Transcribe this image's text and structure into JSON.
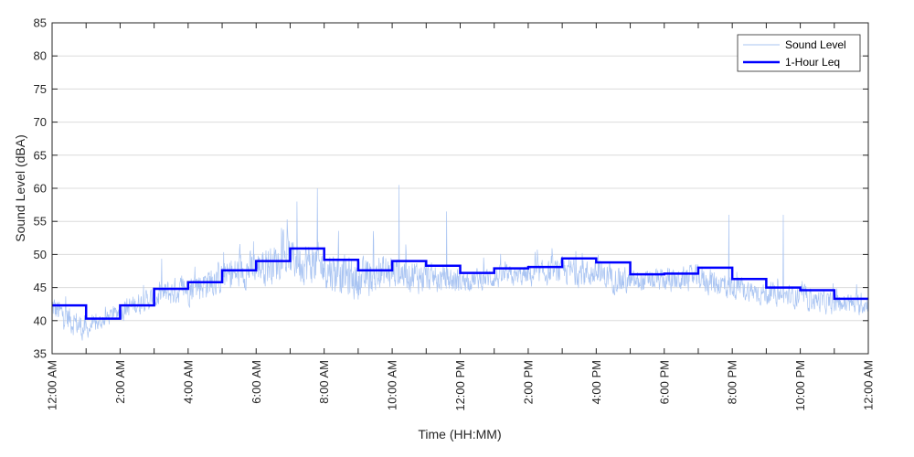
{
  "chart_data": {
    "type": "line",
    "xlabel": "Time (HH:MM)",
    "ylabel": "Sound Level (dBA)",
    "xlim": [
      0,
      24
    ],
    "ylim": [
      35,
      85
    ],
    "y_ticks": [
      35,
      40,
      45,
      50,
      55,
      60,
      65,
      70,
      75,
      80,
      85
    ],
    "x_ticks": [
      0,
      2,
      4,
      6,
      8,
      10,
      12,
      14,
      16,
      18,
      20,
      22,
      24
    ],
    "x_tick_labels": [
      "12:00 AM",
      "2:00 AM",
      "4:00 AM",
      "6:00 AM",
      "8:00 AM",
      "10:00 AM",
      "12:00 PM",
      "2:00 PM",
      "4:00 PM",
      "6:00 PM",
      "8:00 PM",
      "10:00 PM",
      "12:00 AM"
    ],
    "grid": "horizontal",
    "legend_position": "top-right",
    "series": [
      {
        "name": "Sound Level",
        "color": "#a9c4f2",
        "style": "thin noisy trace",
        "hourly_mean": [
          42,
          38.5,
          41.5,
          43.5,
          45,
          46.5,
          48,
          49.5,
          48,
          46,
          47.5,
          46.5,
          46,
          46.5,
          46.8,
          47.5,
          47,
          45.8,
          46,
          46.5,
          45,
          44,
          43.5,
          42.5
        ],
        "hourly_spread": [
          2.5,
          1.5,
          2,
          2.5,
          3,
          3.2,
          3.5,
          4,
          3.8,
          3.5,
          3,
          2.5,
          2,
          2,
          2.2,
          2.5,
          2.5,
          2,
          2.2,
          2.5,
          2,
          2,
          2,
          2
        ],
        "peaks": [
          {
            "x": 7.2,
            "y": 58
          },
          {
            "x": 7.8,
            "y": 60
          },
          {
            "x": 10.2,
            "y": 60.5
          },
          {
            "x": 11.6,
            "y": 56.5
          },
          {
            "x": 19.9,
            "y": 56
          },
          {
            "x": 21.5,
            "y": 56
          }
        ],
        "min": 36.5,
        "max": 60.5
      },
      {
        "name": "1-Hour Leq",
        "color": "#0000ff",
        "style": "step",
        "x": [
          0,
          1,
          2,
          3,
          4,
          5,
          6,
          7,
          8,
          9,
          10,
          11,
          12,
          13,
          14,
          15,
          16,
          17,
          18,
          19,
          20,
          21,
          22,
          23
        ],
        "values": [
          42.3,
          40.3,
          42.3,
          44.8,
          45.8,
          47.6,
          49.0,
          50.9,
          49.2,
          47.6,
          49.0,
          48.3,
          47.2,
          47.9,
          48.1,
          49.4,
          48.8,
          47.0,
          47.1,
          48.0,
          46.3,
          45.0,
          44.6,
          43.3
        ]
      }
    ]
  }
}
